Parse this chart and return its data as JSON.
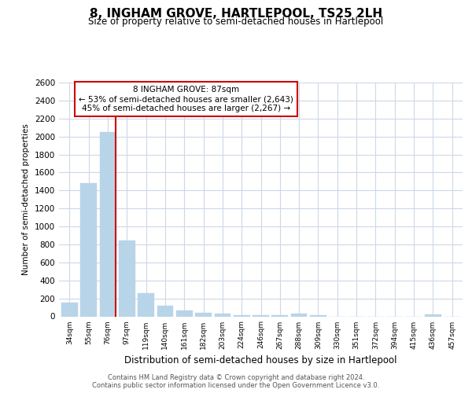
{
  "title": "8, INGHAM GROVE, HARTLEPOOL, TS25 2LH",
  "subtitle": "Size of property relative to semi-detached houses in Hartlepool",
  "xlabel": "Distribution of semi-detached houses by size in Hartlepool",
  "ylabel": "Number of semi-detached properties",
  "footer_line1": "Contains HM Land Registry data © Crown copyright and database right 2024.",
  "footer_line2": "Contains public sector information licensed under the Open Government Licence v3.0.",
  "categories": [
    "34sqm",
    "55sqm",
    "76sqm",
    "97sqm",
    "119sqm",
    "140sqm",
    "161sqm",
    "182sqm",
    "203sqm",
    "224sqm",
    "246sqm",
    "267sqm",
    "288sqm",
    "309sqm",
    "330sqm",
    "351sqm",
    "372sqm",
    "394sqm",
    "415sqm",
    "436sqm",
    "457sqm"
  ],
  "values": [
    150,
    1480,
    2050,
    840,
    260,
    120,
    65,
    40,
    30,
    15,
    15,
    10,
    30,
    10,
    0,
    0,
    0,
    0,
    0,
    20,
    0
  ],
  "bar_color": "#b8d4e8",
  "marker_color": "#cc0000",
  "marker_label": "8 INGHAM GROVE: 87sqm",
  "annotation_line1": "← 53% of semi-detached houses are smaller (2,643)",
  "annotation_line2": "45% of semi-detached houses are larger (2,267) →",
  "box_color": "#cc0000",
  "ylim": [
    0,
    2600
  ],
  "yticks": [
    0,
    200,
    400,
    600,
    800,
    1000,
    1200,
    1400,
    1600,
    1800,
    2000,
    2200,
    2400,
    2600
  ],
  "background_color": "#ffffff",
  "grid_color": "#ccd8e8"
}
